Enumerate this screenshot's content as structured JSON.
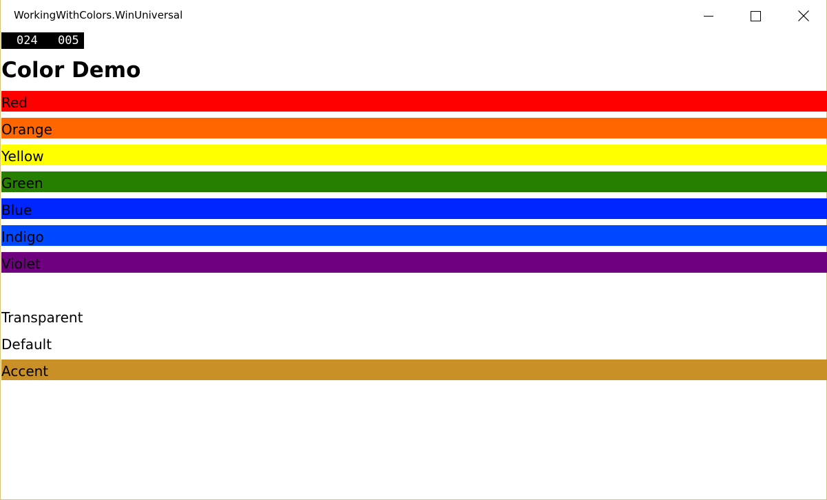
{
  "window": {
    "title": "WorkingWithColors.WinUniversal",
    "minimize_icon": "minimize-icon",
    "maximize_icon": "maximize-icon",
    "close_icon": "close-icon"
  },
  "frame_counter": {
    "value_a": "024",
    "value_b": "005"
  },
  "page": {
    "title": "Color Demo"
  },
  "colors": [
    {
      "label": "Red",
      "color": "#FF0000"
    },
    {
      "label": "Orange",
      "color": "#FF6600"
    },
    {
      "label": "Yellow",
      "color": "#FFFF00"
    },
    {
      "label": "Green",
      "color": "#267F00"
    },
    {
      "label": "Blue",
      "color": "#0026FF"
    },
    {
      "label": "Indigo",
      "color": "#0048FF"
    },
    {
      "label": "Violet",
      "color": "#6F007F"
    }
  ],
  "special_colors": [
    {
      "label": "Transparent",
      "color": "transparent"
    },
    {
      "label": "Default",
      "color": "transparent"
    },
    {
      "label": "Accent",
      "color": "#CA9028"
    }
  ]
}
